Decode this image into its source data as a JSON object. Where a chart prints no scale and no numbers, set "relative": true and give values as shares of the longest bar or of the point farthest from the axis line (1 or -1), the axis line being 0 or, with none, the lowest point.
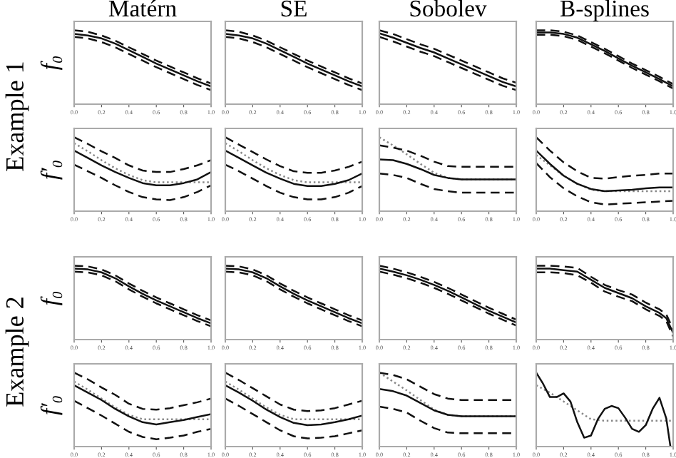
{
  "chart_data": [
    {
      "type": "line",
      "relative": true,
      "title": "Matérn",
      "ylabel": "f₀",
      "annotations": [
        "Example 1"
      ],
      "xlim": [
        0,
        1
      ],
      "xticks": [
        {
          "value": 0,
          "label": "0.0"
        },
        {
          "value": 0.2,
          "label": "0.2"
        },
        {
          "value": 0.4,
          "label": "0.4"
        },
        {
          "value": 0.6,
          "label": "0.6"
        },
        {
          "value": 0.8,
          "label": "0.8"
        },
        {
          "value": 1,
          "label": "1.0"
        }
      ],
      "x": [
        0,
        0.1,
        0.2,
        0.3,
        0.4,
        0.5,
        0.6,
        0.7,
        0.8,
        0.9,
        1
      ],
      "series": [
        {
          "color": "#111111",
          "line_style": "dashed",
          "values": [
            1.0,
            0.98,
            0.93,
            0.86,
            0.77,
            0.68,
            0.59,
            0.51,
            0.43,
            0.35,
            0.28
          ]
        },
        {
          "color": "#111111",
          "line_style": "solid",
          "values": [
            0.95,
            0.93,
            0.89,
            0.82,
            0.73,
            0.64,
            0.55,
            0.47,
            0.39,
            0.31,
            0.24
          ]
        },
        {
          "color": "#111111",
          "line_style": "dashed",
          "values": [
            0.91,
            0.89,
            0.84,
            0.77,
            0.68,
            0.59,
            0.5,
            0.42,
            0.34,
            0.26,
            0.19
          ]
        }
      ]
    },
    {
      "type": "line",
      "relative": true,
      "title": "SE",
      "xlim": [
        0,
        1
      ],
      "xticks": [
        {
          "value": 0,
          "label": "0.0"
        },
        {
          "value": 0.2,
          "label": "0.2"
        },
        {
          "value": 0.4,
          "label": "0.4"
        },
        {
          "value": 0.6,
          "label": "0.6"
        },
        {
          "value": 0.8,
          "label": "0.8"
        },
        {
          "value": 1,
          "label": "1.0"
        }
      ],
      "x": [
        0,
        0.1,
        0.2,
        0.3,
        0.4,
        0.5,
        0.6,
        0.7,
        0.8,
        0.9,
        1
      ],
      "series": [
        {
          "color": "#111111",
          "line_style": "dashed",
          "values": [
            1.0,
            0.98,
            0.93,
            0.86,
            0.77,
            0.68,
            0.59,
            0.51,
            0.43,
            0.35,
            0.28
          ]
        },
        {
          "color": "#111111",
          "line_style": "solid",
          "values": [
            0.95,
            0.93,
            0.89,
            0.82,
            0.73,
            0.64,
            0.55,
            0.47,
            0.39,
            0.31,
            0.24
          ]
        },
        {
          "color": "#111111",
          "line_style": "dashed",
          "values": [
            0.91,
            0.89,
            0.84,
            0.77,
            0.68,
            0.59,
            0.5,
            0.42,
            0.34,
            0.26,
            0.19
          ]
        }
      ]
    },
    {
      "type": "line",
      "relative": true,
      "title": "Sobolev",
      "xlim": [
        0,
        1
      ],
      "xticks": [
        {
          "value": 0,
          "label": "0.0"
        },
        {
          "value": 0.2,
          "label": "0.2"
        },
        {
          "value": 0.4,
          "label": "0.4"
        },
        {
          "value": 0.6,
          "label": "0.6"
        },
        {
          "value": 0.8,
          "label": "0.8"
        },
        {
          "value": 1,
          "label": "1.0"
        }
      ],
      "x": [
        0,
        0.1,
        0.2,
        0.3,
        0.4,
        0.5,
        0.6,
        0.7,
        0.8,
        0.9,
        1
      ],
      "series": [
        {
          "color": "#111111",
          "line_style": "dashed",
          "values": [
            1.0,
            0.95,
            0.88,
            0.81,
            0.75,
            0.67,
            0.59,
            0.51,
            0.43,
            0.35,
            0.29
          ]
        },
        {
          "color": "#111111",
          "line_style": "solid",
          "values": [
            0.96,
            0.9,
            0.83,
            0.76,
            0.7,
            0.62,
            0.54,
            0.46,
            0.38,
            0.3,
            0.24
          ]
        },
        {
          "color": "#111111",
          "line_style": "dashed",
          "values": [
            0.91,
            0.85,
            0.78,
            0.71,
            0.65,
            0.57,
            0.49,
            0.41,
            0.33,
            0.25,
            0.19
          ]
        }
      ]
    },
    {
      "type": "line",
      "relative": true,
      "title": "B-splines",
      "xlim": [
        0,
        1
      ],
      "xticks": [
        {
          "value": 0,
          "label": "0.0"
        },
        {
          "value": 0.2,
          "label": "0.2"
        },
        {
          "value": 0.4,
          "label": "0.4"
        },
        {
          "value": 0.6,
          "label": "0.6"
        },
        {
          "value": 0.8,
          "label": "0.8"
        },
        {
          "value": 1,
          "label": "1.0"
        }
      ],
      "x": [
        0,
        0.1,
        0.2,
        0.3,
        0.4,
        0.5,
        0.6,
        0.7,
        0.8,
        0.9,
        1
      ],
      "series": [
        {
          "color": "#111111",
          "line_style": "dashed",
          "values": [
            1.0,
            1.0,
            0.98,
            0.93,
            0.84,
            0.75,
            0.65,
            0.55,
            0.46,
            0.37,
            0.27
          ]
        },
        {
          "color": "#111111",
          "line_style": "solid",
          "values": [
            0.97,
            0.97,
            0.95,
            0.9,
            0.81,
            0.72,
            0.62,
            0.52,
            0.43,
            0.34,
            0.24
          ]
        },
        {
          "color": "#111111",
          "line_style": "dashed",
          "values": [
            0.94,
            0.94,
            0.92,
            0.87,
            0.78,
            0.69,
            0.59,
            0.49,
            0.4,
            0.31,
            0.21
          ]
        }
      ]
    },
    {
      "type": "line",
      "relative": true,
      "ylabel": "f′₀",
      "xlim": [
        0,
        1
      ],
      "xticks": [
        {
          "value": 0,
          "label": "0.0"
        },
        {
          "value": 0.2,
          "label": "0.2"
        },
        {
          "value": 0.4,
          "label": "0.4"
        },
        {
          "value": 0.6,
          "label": "0.6"
        },
        {
          "value": 0.8,
          "label": "0.8"
        },
        {
          "value": 1,
          "label": "1.0"
        }
      ],
      "x": [
        0,
        0.1,
        0.2,
        0.3,
        0.4,
        0.5,
        0.6,
        0.7,
        0.8,
        0.9,
        1
      ],
      "series": [
        {
          "color": "#888888",
          "line_style": "dotted",
          "values": [
            0.92,
            0.81,
            0.69,
            0.58,
            0.49,
            0.42,
            0.39,
            0.39,
            0.39,
            0.39,
            0.39
          ]
        },
        {
          "color": "#111111",
          "line_style": "dashed",
          "values": [
            1.0,
            0.91,
            0.81,
            0.72,
            0.62,
            0.55,
            0.53,
            0.53,
            0.57,
            0.62,
            0.69
          ]
        },
        {
          "color": "#111111",
          "line_style": "solid",
          "values": [
            0.82,
            0.72,
            0.62,
            0.53,
            0.45,
            0.38,
            0.35,
            0.35,
            0.38,
            0.43,
            0.53
          ]
        },
        {
          "color": "#111111",
          "line_style": "dashed",
          "values": [
            0.63,
            0.54,
            0.45,
            0.35,
            0.26,
            0.19,
            0.16,
            0.15,
            0.19,
            0.26,
            0.35
          ]
        }
      ]
    },
    {
      "type": "line",
      "relative": true,
      "xlim": [
        0,
        1
      ],
      "xticks": [
        {
          "value": 0,
          "label": "0.0"
        },
        {
          "value": 0.2,
          "label": "0.2"
        },
        {
          "value": 0.4,
          "label": "0.4"
        },
        {
          "value": 0.6,
          "label": "0.6"
        },
        {
          "value": 0.8,
          "label": "0.8"
        },
        {
          "value": 1,
          "label": "1.0"
        }
      ],
      "x": [
        0,
        0.1,
        0.2,
        0.3,
        0.4,
        0.5,
        0.6,
        0.7,
        0.8,
        0.9,
        1
      ],
      "series": [
        {
          "color": "#888888",
          "line_style": "dotted",
          "values": [
            0.92,
            0.81,
            0.69,
            0.58,
            0.49,
            0.42,
            0.39,
            0.39,
            0.39,
            0.39,
            0.39
          ]
        },
        {
          "color": "#111111",
          "line_style": "dashed",
          "values": [
            1.0,
            0.9,
            0.8,
            0.7,
            0.61,
            0.54,
            0.52,
            0.52,
            0.55,
            0.6,
            0.67
          ]
        },
        {
          "color": "#111111",
          "line_style": "solid",
          "values": [
            0.82,
            0.72,
            0.62,
            0.52,
            0.44,
            0.37,
            0.34,
            0.34,
            0.37,
            0.42,
            0.51
          ]
        },
        {
          "color": "#111111",
          "line_style": "dashed",
          "values": [
            0.63,
            0.54,
            0.44,
            0.34,
            0.25,
            0.19,
            0.16,
            0.16,
            0.19,
            0.25,
            0.34
          ]
        }
      ]
    },
    {
      "type": "line",
      "relative": true,
      "xlim": [
        0,
        1
      ],
      "xticks": [
        {
          "value": 0,
          "label": "0.0"
        },
        {
          "value": 0.2,
          "label": "0.2"
        },
        {
          "value": 0.4,
          "label": "0.4"
        },
        {
          "value": 0.6,
          "label": "0.6"
        },
        {
          "value": 0.8,
          "label": "0.8"
        },
        {
          "value": 1,
          "label": "1.0"
        }
      ],
      "x": [
        0,
        0.1,
        0.2,
        0.3,
        0.4,
        0.5,
        0.6,
        0.7,
        0.8,
        0.9,
        1
      ],
      "series": [
        {
          "color": "#888888",
          "line_style": "dotted",
          "values": [
            1.0,
            0.89,
            0.77,
            0.64,
            0.52,
            0.45,
            0.43,
            0.43,
            0.43,
            0.43,
            0.43
          ]
        },
        {
          "color": "#111111",
          "line_style": "dashed",
          "values": [
            0.89,
            0.86,
            0.82,
            0.75,
            0.67,
            0.61,
            0.6,
            0.6,
            0.6,
            0.6,
            0.6
          ]
        },
        {
          "color": "#111111",
          "line_style": "solid",
          "values": [
            0.7,
            0.69,
            0.64,
            0.57,
            0.49,
            0.45,
            0.43,
            0.43,
            0.43,
            0.43,
            0.43
          ]
        },
        {
          "color": "#111111",
          "line_style": "dashed",
          "values": [
            0.51,
            0.49,
            0.45,
            0.37,
            0.3,
            0.27,
            0.25,
            0.25,
            0.25,
            0.25,
            0.25
          ]
        }
      ]
    },
    {
      "type": "line",
      "relative": true,
      "xlim": [
        0,
        1
      ],
      "xticks": [
        {
          "value": 0,
          "label": "0.0"
        },
        {
          "value": 0.2,
          "label": "0.2"
        },
        {
          "value": 0.4,
          "label": "0.4"
        },
        {
          "value": 0.6,
          "label": "0.6"
        },
        {
          "value": 0.8,
          "label": "0.8"
        },
        {
          "value": 1,
          "label": "1.0"
        }
      ],
      "x": [
        0,
        0.1,
        0.2,
        0.3,
        0.4,
        0.5,
        0.6,
        0.7,
        0.8,
        0.9,
        1
      ],
      "series": [
        {
          "color": "#888888",
          "line_style": "dotted",
          "values": [
            0.76,
            0.62,
            0.48,
            0.37,
            0.29,
            0.27,
            0.27,
            0.27,
            0.27,
            0.27,
            0.27
          ]
        },
        {
          "color": "#111111",
          "line_style": "dashed",
          "values": [
            1.0,
            0.82,
            0.66,
            0.54,
            0.45,
            0.44,
            0.46,
            0.48,
            0.49,
            0.51,
            0.51
          ]
        },
        {
          "color": "#111111",
          "line_style": "solid",
          "values": [
            0.82,
            0.64,
            0.48,
            0.37,
            0.3,
            0.27,
            0.28,
            0.29,
            0.31,
            0.32,
            0.32
          ]
        },
        {
          "color": "#111111",
          "line_style": "dashed",
          "values": [
            0.65,
            0.46,
            0.31,
            0.2,
            0.12,
            0.09,
            0.1,
            0.11,
            0.12,
            0.13,
            0.14
          ]
        }
      ]
    },
    {
      "type": "line",
      "relative": true,
      "ylabel": "f₀",
      "annotations": [
        "Example 2"
      ],
      "xlim": [
        0,
        1
      ],
      "xticks": [
        {
          "value": 0,
          "label": "0.0"
        },
        {
          "value": 0.2,
          "label": "0.2"
        },
        {
          "value": 0.4,
          "label": "0.4"
        },
        {
          "value": 0.6,
          "label": "0.6"
        },
        {
          "value": 0.8,
          "label": "0.8"
        },
        {
          "value": 1,
          "label": "1.0"
        }
      ],
      "x": [
        0,
        0.1,
        0.2,
        0.3,
        0.4,
        0.5,
        0.6,
        0.7,
        0.8,
        0.9,
        1
      ],
      "series": [
        {
          "color": "#111111",
          "line_style": "dashed",
          "values": [
            1.0,
            0.99,
            0.95,
            0.87,
            0.76,
            0.66,
            0.57,
            0.49,
            0.41,
            0.33,
            0.26
          ]
        },
        {
          "color": "#111111",
          "line_style": "solid",
          "values": [
            0.96,
            0.95,
            0.91,
            0.83,
            0.72,
            0.62,
            0.53,
            0.45,
            0.37,
            0.29,
            0.22
          ]
        },
        {
          "color": "#111111",
          "line_style": "dashed",
          "values": [
            0.92,
            0.91,
            0.87,
            0.79,
            0.68,
            0.58,
            0.49,
            0.41,
            0.33,
            0.25,
            0.18
          ]
        }
      ]
    },
    {
      "type": "line",
      "relative": true,
      "xlim": [
        0,
        1
      ],
      "xticks": [
        {
          "value": 0,
          "label": "0.0"
        },
        {
          "value": 0.2,
          "label": "0.2"
        },
        {
          "value": 0.4,
          "label": "0.4"
        },
        {
          "value": 0.6,
          "label": "0.6"
        },
        {
          "value": 0.8,
          "label": "0.8"
        },
        {
          "value": 1,
          "label": "1.0"
        }
      ],
      "x": [
        0,
        0.1,
        0.2,
        0.3,
        0.4,
        0.5,
        0.6,
        0.7,
        0.8,
        0.9,
        1
      ],
      "series": [
        {
          "color": "#111111",
          "line_style": "dashed",
          "values": [
            1.0,
            0.99,
            0.95,
            0.87,
            0.76,
            0.66,
            0.57,
            0.49,
            0.41,
            0.33,
            0.26
          ]
        },
        {
          "color": "#111111",
          "line_style": "solid",
          "values": [
            0.96,
            0.95,
            0.91,
            0.83,
            0.72,
            0.62,
            0.53,
            0.45,
            0.37,
            0.29,
            0.22
          ]
        },
        {
          "color": "#111111",
          "line_style": "dashed",
          "values": [
            0.92,
            0.91,
            0.87,
            0.79,
            0.68,
            0.58,
            0.49,
            0.41,
            0.33,
            0.25,
            0.18
          ]
        }
      ]
    },
    {
      "type": "line",
      "relative": true,
      "xlim": [
        0,
        1
      ],
      "xticks": [
        {
          "value": 0,
          "label": "0.0"
        },
        {
          "value": 0.2,
          "label": "0.2"
        },
        {
          "value": 0.4,
          "label": "0.4"
        },
        {
          "value": 0.6,
          "label": "0.6"
        },
        {
          "value": 0.8,
          "label": "0.8"
        },
        {
          "value": 1,
          "label": "1.0"
        }
      ],
      "x": [
        0,
        0.1,
        0.2,
        0.3,
        0.4,
        0.5,
        0.6,
        0.7,
        0.8,
        0.9,
        1
      ],
      "series": [
        {
          "color": "#111111",
          "line_style": "dashed",
          "values": [
            1.0,
            0.96,
            0.91,
            0.85,
            0.78,
            0.7,
            0.61,
            0.52,
            0.43,
            0.35,
            0.27
          ]
        },
        {
          "color": "#111111",
          "line_style": "solid",
          "values": [
            0.96,
            0.92,
            0.87,
            0.81,
            0.74,
            0.66,
            0.57,
            0.48,
            0.39,
            0.31,
            0.23
          ]
        },
        {
          "color": "#111111",
          "line_style": "dashed",
          "values": [
            0.92,
            0.88,
            0.83,
            0.77,
            0.7,
            0.62,
            0.53,
            0.44,
            0.35,
            0.27,
            0.19
          ]
        }
      ]
    },
    {
      "type": "line",
      "relative": true,
      "xlim": [
        0,
        1
      ],
      "xticks": [
        {
          "value": 0,
          "label": "0.0"
        },
        {
          "value": 0.2,
          "label": "0.2"
        },
        {
          "value": 0.4,
          "label": "0.4"
        },
        {
          "value": 0.6,
          "label": "0.6"
        },
        {
          "value": 0.8,
          "label": "0.8"
        },
        {
          "value": 1,
          "label": "1.0"
        }
      ],
      "x": [
        0,
        0.1,
        0.2,
        0.3,
        0.4,
        0.5,
        0.6,
        0.7,
        0.8,
        0.9,
        0.95,
        1
      ],
      "series": [
        {
          "color": "#111111",
          "line_style": "dashed",
          "values": [
            1.0,
            1.0,
            0.99,
            0.97,
            0.85,
            0.74,
            0.67,
            0.61,
            0.5,
            0.41,
            0.34,
            0.14
          ]
        },
        {
          "color": "#111111",
          "line_style": "solid",
          "values": [
            0.96,
            0.96,
            0.94,
            0.92,
            0.81,
            0.7,
            0.63,
            0.56,
            0.45,
            0.36,
            0.29,
            0.09
          ]
        },
        {
          "color": "#111111",
          "line_style": "dashed",
          "values": [
            0.91,
            0.91,
            0.9,
            0.87,
            0.77,
            0.65,
            0.58,
            0.52,
            0.41,
            0.32,
            0.25,
            0.04
          ]
        }
      ]
    },
    {
      "type": "line",
      "relative": true,
      "ylabel": "f′₀",
      "xlim": [
        0,
        1
      ],
      "xticks": [
        {
          "value": 0,
          "label": "0.0"
        },
        {
          "value": 0.2,
          "label": "0.2"
        },
        {
          "value": 0.4,
          "label": "0.4"
        },
        {
          "value": 0.6,
          "label": "0.6"
        },
        {
          "value": 0.8,
          "label": "0.8"
        },
        {
          "value": 1,
          "label": "1.0"
        }
      ],
      "x": [
        0,
        0.1,
        0.2,
        0.3,
        0.4,
        0.5,
        0.6,
        0.7,
        0.8,
        0.9,
        1
      ],
      "series": [
        {
          "color": "#888888",
          "line_style": "dotted",
          "values": [
            0.88,
            0.77,
            0.65,
            0.53,
            0.43,
            0.37,
            0.37,
            0.37,
            0.37,
            0.37,
            0.37
          ]
        },
        {
          "color": "#111111",
          "line_style": "dashed",
          "values": [
            1.0,
            0.91,
            0.8,
            0.7,
            0.58,
            0.51,
            0.5,
            0.52,
            0.56,
            0.6,
            0.65
          ]
        },
        {
          "color": "#111111",
          "line_style": "solid",
          "values": [
            0.83,
            0.73,
            0.63,
            0.51,
            0.41,
            0.33,
            0.3,
            0.33,
            0.36,
            0.4,
            0.44
          ]
        },
        {
          "color": "#111111",
          "line_style": "dashed",
          "values": [
            0.62,
            0.52,
            0.42,
            0.31,
            0.2,
            0.13,
            0.1,
            0.12,
            0.15,
            0.2,
            0.24
          ]
        }
      ]
    },
    {
      "type": "line",
      "relative": true,
      "xlim": [
        0,
        1
      ],
      "xticks": [
        {
          "value": 0,
          "label": "0.0"
        },
        {
          "value": 0.2,
          "label": "0.2"
        },
        {
          "value": 0.4,
          "label": "0.4"
        },
        {
          "value": 0.6,
          "label": "0.6"
        },
        {
          "value": 0.8,
          "label": "0.8"
        },
        {
          "value": 1,
          "label": "1.0"
        }
      ],
      "x": [
        0,
        0.1,
        0.2,
        0.3,
        0.4,
        0.5,
        0.6,
        0.7,
        0.8,
        0.9,
        1
      ],
      "series": [
        {
          "color": "#888888",
          "line_style": "dotted",
          "values": [
            0.88,
            0.77,
            0.65,
            0.53,
            0.43,
            0.37,
            0.37,
            0.37,
            0.37,
            0.37,
            0.37
          ]
        },
        {
          "color": "#111111",
          "line_style": "dashed",
          "values": [
            1.0,
            0.9,
            0.79,
            0.68,
            0.57,
            0.5,
            0.48,
            0.49,
            0.52,
            0.57,
            0.62
          ]
        },
        {
          "color": "#111111",
          "line_style": "solid",
          "values": [
            0.83,
            0.73,
            0.62,
            0.5,
            0.4,
            0.32,
            0.29,
            0.3,
            0.33,
            0.37,
            0.42
          ]
        },
        {
          "color": "#111111",
          "line_style": "dashed",
          "values": [
            0.65,
            0.55,
            0.44,
            0.33,
            0.22,
            0.14,
            0.11,
            0.12,
            0.14,
            0.18,
            0.22
          ]
        }
      ]
    },
    {
      "type": "line",
      "relative": true,
      "xlim": [
        0,
        1
      ],
      "xticks": [
        {
          "value": 0,
          "label": "0.0"
        },
        {
          "value": 0.2,
          "label": "0.2"
        },
        {
          "value": 0.4,
          "label": "0.4"
        },
        {
          "value": 0.6,
          "label": "0.6"
        },
        {
          "value": 0.8,
          "label": "0.8"
        },
        {
          "value": 1,
          "label": "1.0"
        }
      ],
      "x": [
        0,
        0.1,
        0.2,
        0.3,
        0.4,
        0.5,
        0.6,
        0.7,
        0.8,
        0.9,
        1
      ],
      "series": [
        {
          "color": "#888888",
          "line_style": "dotted",
          "values": [
            1.0,
            0.88,
            0.76,
            0.63,
            0.5,
            0.43,
            0.41,
            null,
            null,
            null,
            0.41
          ]
        },
        {
          "color": "#111111",
          "line_style": "dashed",
          "values": [
            1.0,
            0.97,
            0.91,
            0.81,
            0.71,
            0.65,
            0.63,
            0.63,
            0.63,
            0.63,
            0.63
          ]
        },
        {
          "color": "#111111",
          "line_style": "solid",
          "values": [
            0.78,
            0.75,
            0.69,
            0.59,
            0.49,
            0.43,
            0.41,
            0.41,
            0.41,
            0.41,
            0.41
          ]
        },
        {
          "color": "#111111",
          "line_style": "dashed",
          "values": [
            0.54,
            0.51,
            0.46,
            0.35,
            0.25,
            0.19,
            0.18,
            0.18,
            0.18,
            0.18,
            0.18
          ]
        }
      ]
    },
    {
      "type": "line",
      "relative": true,
      "xlim": [
        0,
        1
      ],
      "xticks": [
        {
          "value": 0,
          "label": "0.0"
        },
        {
          "value": 0.2,
          "label": "0.2"
        },
        {
          "value": 0.4,
          "label": "0.4"
        },
        {
          "value": 0.6,
          "label": "0.6"
        },
        {
          "value": 0.8,
          "label": "0.8"
        },
        {
          "value": 1,
          "label": "1.0"
        }
      ],
      "x": [
        0,
        0.1,
        0.2,
        0.3,
        0.4,
        0.5,
        0.6,
        0.7,
        0.8,
        0.9,
        1
      ],
      "series": [
        {
          "color": "#888888",
          "line_style": "dotted",
          "values": [
            0.83,
            0.73,
            0.61,
            0.49,
            0.37,
            0.35,
            0.35,
            0.35,
            0.35,
            0.35,
            0.35
          ]
        },
        {
          "color": "#111111",
          "line_style": "solid",
          "x": [
            0,
            0.05,
            0.1,
            0.15,
            0.2,
            0.25,
            0.3,
            0.35,
            0.4,
            0.45,
            0.5,
            0.55,
            0.6,
            0.65,
            0.7,
            0.75,
            0.8,
            0.85,
            0.9,
            0.95,
            0.98
          ],
          "values": [
            1.0,
            0.85,
            0.67,
            0.67,
            0.72,
            0.61,
            0.33,
            0.12,
            0.15,
            0.37,
            0.51,
            0.55,
            0.52,
            0.39,
            0.24,
            0.2,
            0.29,
            0.51,
            0.66,
            0.38,
            0.0
          ]
        }
      ]
    }
  ]
}
